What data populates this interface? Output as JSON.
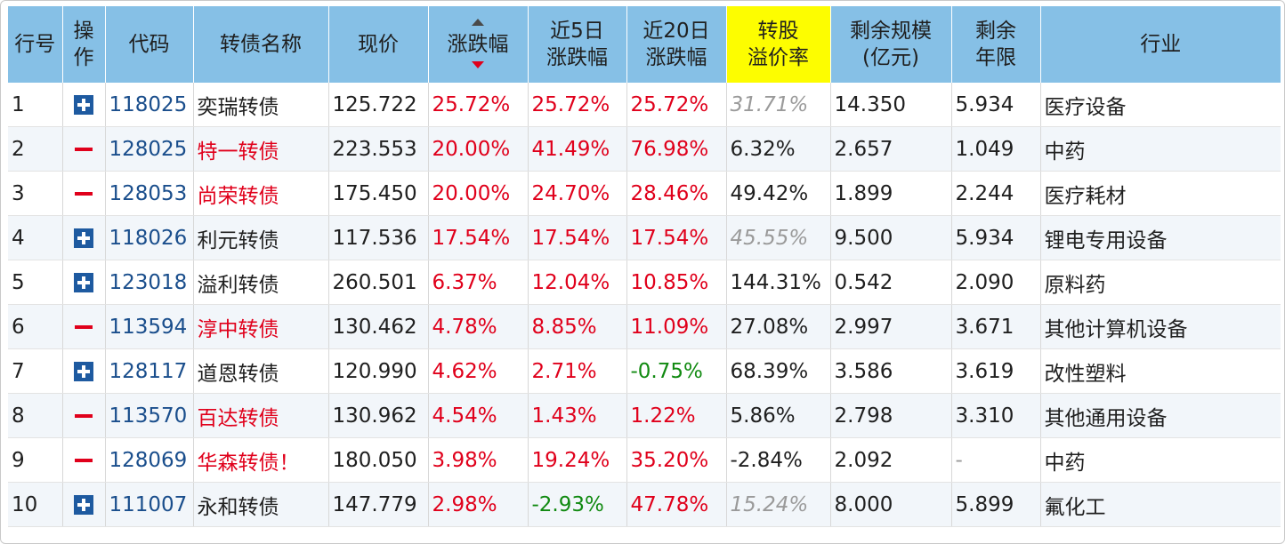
{
  "header": {
    "rank": "行号",
    "op_line1": "操",
    "op_line2": "作",
    "code": "代码",
    "name": "转债名称",
    "price": "现价",
    "change": "涨跌幅",
    "chg5_line1": "近5日",
    "chg5_line2": "涨跌幅",
    "chg20_line1": "近20日",
    "chg20_line2": "涨跌幅",
    "premium_line1": "转股",
    "premium_line2": "溢价率",
    "scale_line1": "剩余规模",
    "scale_line2": "(亿元)",
    "years_line1": "剩余",
    "years_line2": "年限",
    "industry": "行业"
  },
  "rows": [
    {
      "rank": "1",
      "action": "plus",
      "code": "118025",
      "name": "奕瑞转债",
      "name_red": false,
      "price": "125.722",
      "change": "25.72%",
      "change_color": "red",
      "chg5": "25.72%",
      "chg5_color": "red",
      "chg20": "25.72%",
      "chg20_color": "red",
      "premium": "31.71%",
      "premium_style": "italic-grey",
      "scale": "14.350",
      "years": "5.934",
      "years_style": "",
      "industry": "医疗设备"
    },
    {
      "rank": "2",
      "action": "minus",
      "code": "128025",
      "name": "特一转债",
      "name_red": true,
      "price": "223.553",
      "change": "20.00%",
      "change_color": "red",
      "chg5": "41.49%",
      "chg5_color": "red",
      "chg20": "76.98%",
      "chg20_color": "red",
      "premium": "6.32%",
      "premium_style": "",
      "scale": "2.657",
      "years": "1.049",
      "years_style": "",
      "industry": "中药"
    },
    {
      "rank": "3",
      "action": "minus",
      "code": "128053",
      "name": "尚荣转债",
      "name_red": true,
      "price": "175.450",
      "change": "20.00%",
      "change_color": "red",
      "chg5": "24.70%",
      "chg5_color": "red",
      "chg20": "28.46%",
      "chg20_color": "red",
      "premium": "49.42%",
      "premium_style": "",
      "scale": "1.899",
      "years": "2.244",
      "years_style": "",
      "industry": "医疗耗材"
    },
    {
      "rank": "4",
      "action": "plus",
      "code": "118026",
      "name": "利元转债",
      "name_red": false,
      "price": "117.536",
      "change": "17.54%",
      "change_color": "red",
      "chg5": "17.54%",
      "chg5_color": "red",
      "chg20": "17.54%",
      "chg20_color": "red",
      "premium": "45.55%",
      "premium_style": "italic-grey",
      "scale": "9.500",
      "years": "5.934",
      "years_style": "",
      "industry": "锂电专用设备"
    },
    {
      "rank": "5",
      "action": "plus",
      "code": "123018",
      "name": "溢利转债",
      "name_red": false,
      "price": "260.501",
      "change": "6.37%",
      "change_color": "red",
      "chg5": "12.04%",
      "chg5_color": "red",
      "chg20": "10.85%",
      "chg20_color": "red",
      "premium": "144.31%",
      "premium_style": "",
      "scale": "0.542",
      "years": "2.090",
      "years_style": "",
      "industry": "原料药"
    },
    {
      "rank": "6",
      "action": "minus",
      "code": "113594",
      "name": "淳中转债",
      "name_red": true,
      "price": "130.462",
      "change": "4.78%",
      "change_color": "red",
      "chg5": "8.85%",
      "chg5_color": "red",
      "chg20": "11.09%",
      "chg20_color": "red",
      "premium": "27.08%",
      "premium_style": "",
      "scale": "2.997",
      "years": "3.671",
      "years_style": "",
      "industry": "其他计算机设备"
    },
    {
      "rank": "7",
      "action": "plus",
      "code": "128117",
      "name": "道恩转债",
      "name_red": false,
      "price": "120.990",
      "change": "4.62%",
      "change_color": "red",
      "chg5": "2.71%",
      "chg5_color": "red",
      "chg20": "-0.75%",
      "chg20_color": "green",
      "premium": "68.39%",
      "premium_style": "",
      "scale": "3.586",
      "years": "3.619",
      "years_style": "",
      "industry": "改性塑料"
    },
    {
      "rank": "8",
      "action": "minus",
      "code": "113570",
      "name": "百达转债",
      "name_red": true,
      "price": "130.962",
      "change": "4.54%",
      "change_color": "red",
      "chg5": "1.43%",
      "chg5_color": "red",
      "chg20": "1.22%",
      "chg20_color": "red",
      "premium": "5.86%",
      "premium_style": "",
      "scale": "2.798",
      "years": "3.310",
      "years_style": "",
      "industry": "其他通用设备"
    },
    {
      "rank": "9",
      "action": "minus",
      "code": "128069",
      "name": "华森转债！",
      "name_red": true,
      "price": "180.050",
      "change": "3.98%",
      "change_color": "red",
      "chg5": "19.24%",
      "chg5_color": "red",
      "chg20": "35.20%",
      "chg20_color": "red",
      "premium": "-2.84%",
      "premium_style": "",
      "scale": "2.092",
      "years": "-",
      "years_style": "dash",
      "industry": "中药"
    },
    {
      "rank": "10",
      "action": "plus",
      "code": "111007",
      "name": "永和转债",
      "name_red": false,
      "price": "147.779",
      "change": "2.98%",
      "change_color": "red",
      "chg5": "-2.93%",
      "chg5_color": "green",
      "chg20": "47.78%",
      "chg20_color": "red",
      "premium": "15.24%",
      "premium_style": "italic-grey",
      "scale": "8.000",
      "years": "5.899",
      "years_style": "",
      "industry": "氟化工"
    }
  ]
}
